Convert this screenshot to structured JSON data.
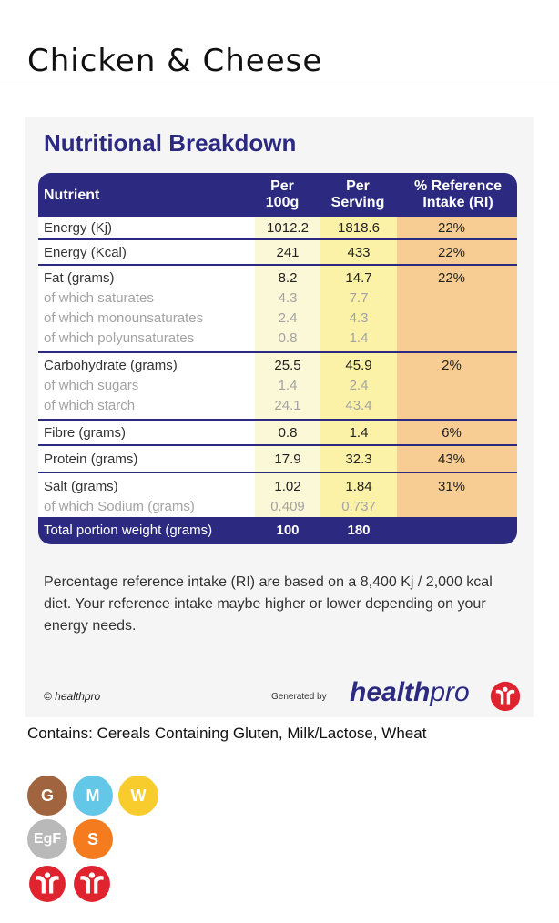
{
  "page": {
    "title": "Chicken & Cheese"
  },
  "nutrition": {
    "heading": "Nutritional Breakdown",
    "columns": {
      "nutrient": "Nutrient",
      "per100g_line1": "Per",
      "per100g_line2": "100g",
      "perServing_line1": "Per",
      "perServing_line2": "Serving",
      "ri_line1": "% Reference",
      "ri_line2": "Intake (RI)"
    },
    "rows": [
      {
        "label": "Energy (Kj)",
        "per100g": "1012.2",
        "perServing": "1818.6",
        "ri": "22%"
      },
      {
        "label": "Energy (Kcal)",
        "per100g": "241",
        "perServing": "433",
        "ri": "22%"
      },
      {
        "label": "Fat (grams)",
        "per100g": "8.2",
        "perServing": "14.7",
        "ri": "22%"
      },
      {
        "label": "of which saturates",
        "per100g": "4.3",
        "perServing": "7.7",
        "ri": ""
      },
      {
        "label": "of which monounsaturates",
        "per100g": "2.4",
        "perServing": "4.3",
        "ri": ""
      },
      {
        "label": "of which polyunsaturates",
        "per100g": "0.8",
        "perServing": "1.4",
        "ri": ""
      },
      {
        "label": "Carbohydrate (grams)",
        "per100g": "25.5",
        "perServing": "45.9",
        "ri": "2%"
      },
      {
        "label": "of which sugars",
        "per100g": "1.4",
        "perServing": "2.4",
        "ri": ""
      },
      {
        "label": "of which starch",
        "per100g": "24.1",
        "perServing": "43.4",
        "ri": ""
      },
      {
        "label": "Fibre (grams)",
        "per100g": "0.8",
        "perServing": "1.4",
        "ri": "6%"
      },
      {
        "label": "Protein (grams)",
        "per100g": "17.9",
        "perServing": "32.3",
        "ri": "43%"
      },
      {
        "label": "Salt (grams)",
        "per100g": "1.02",
        "perServing": "1.84",
        "ri": "31%"
      },
      {
        "label": "of which Sodium (grams)",
        "per100g": "0.409",
        "perServing": "0.737",
        "ri": ""
      }
    ],
    "total": {
      "label": "Total portion weight (grams)",
      "per100g": "100",
      "perServing": "180"
    },
    "note": "Percentage reference intake (RI) are based on a 8,400 Kj / 2,000 kcal diet. Your reference intake maybe higher or lower depending on your energy needs.",
    "copyright": "© healthpro",
    "generated_by": "Generated by",
    "brand_part1": "health",
    "brand_part2": "pro"
  },
  "allergens": {
    "text": "Contains: Cereals Containing Gluten, Milk/Lactose, Wheat",
    "badges": [
      {
        "letter": "G",
        "color": "#a0643f"
      },
      {
        "letter": "M",
        "color": "#63c7e8"
      },
      {
        "letter": "W",
        "color": "#f7cc2c"
      },
      {
        "letter": "EgF",
        "color": "#b9b9b9"
      },
      {
        "letter": "S",
        "color": "#f47c1f"
      }
    ]
  },
  "colors": {
    "navy": "#2c2a80",
    "brand_red": "#e0242f"
  }
}
